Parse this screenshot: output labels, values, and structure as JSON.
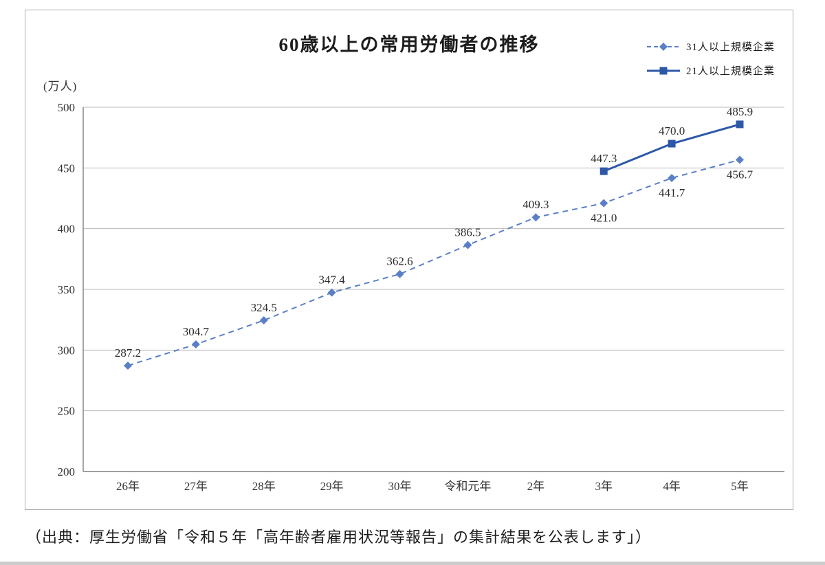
{
  "chart": {
    "source_note": "（出典：厚生労働省「令和５年「高年齢者雇用状況等報告」の集計結果を公表します」）"
  },
  "chart_data": {
    "type": "line",
    "title": "60歳以上の常用労働者の推移",
    "ylabel": "(万人)",
    "xlabel": "",
    "ylim": [
      200,
      500
    ],
    "ytick_step": 50,
    "grid": true,
    "legend_position": "top-right",
    "categories": [
      "26年",
      "27年",
      "28年",
      "29年",
      "30年",
      "令和元年",
      "2年",
      "3年",
      "4年",
      "5年"
    ],
    "series": [
      {
        "name": "31人以上規模企業",
        "style": "dashed",
        "marker": "diamond",
        "color": "#5b7fc7",
        "values": [
          287.2,
          304.7,
          324.5,
          347.4,
          362.6,
          386.5,
          409.3,
          421.0,
          441.7,
          456.7
        ],
        "label_positions": [
          "above",
          "above",
          "above",
          "above",
          "above",
          "above",
          "above",
          "below",
          "below",
          "below"
        ]
      },
      {
        "name": "21人以上規模企業",
        "style": "solid",
        "marker": "square",
        "color": "#2d58a8",
        "values": [
          null,
          null,
          null,
          null,
          null,
          null,
          null,
          447.3,
          470.0,
          485.9
        ],
        "label_positions": [
          null,
          null,
          null,
          null,
          null,
          null,
          null,
          "above",
          "above",
          "above"
        ]
      }
    ]
  }
}
